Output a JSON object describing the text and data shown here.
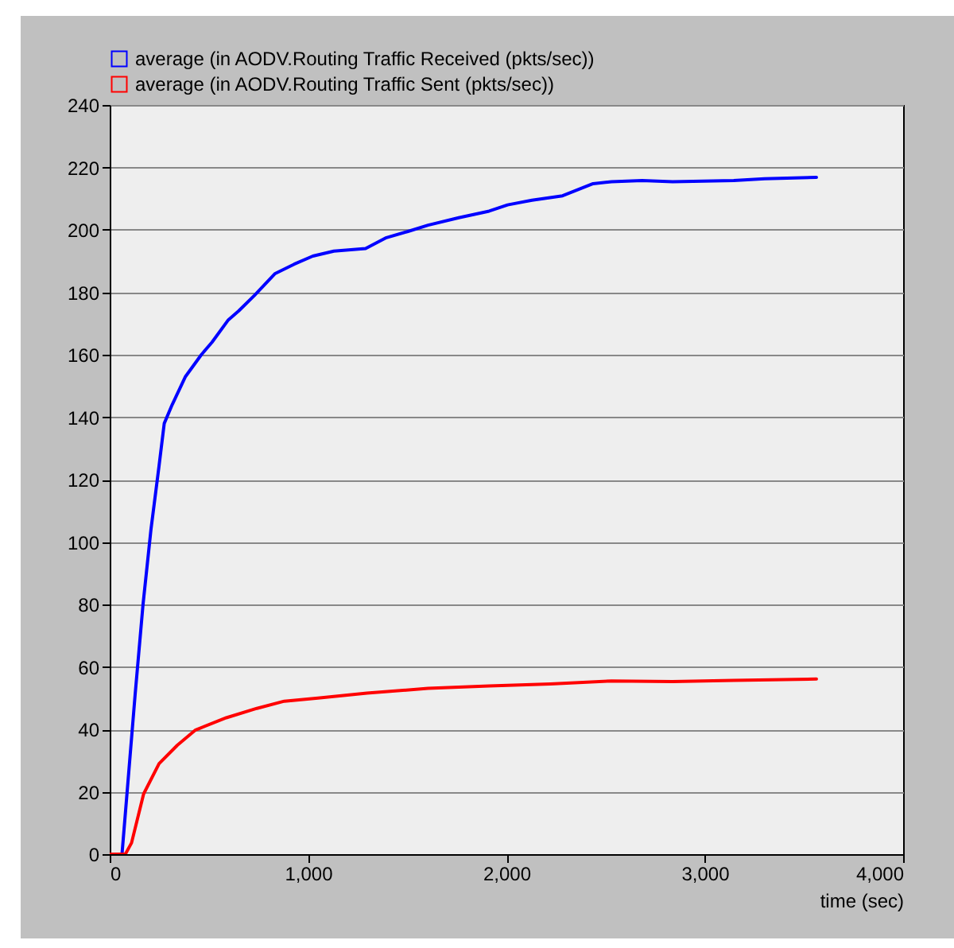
{
  "chart_data": {
    "type": "line",
    "xlabel": "time (sec)",
    "xlim": [
      0,
      4000
    ],
    "xticks": [
      0,
      {
        "value": 1000,
        "label": "1,000"
      },
      {
        "value": 2000,
        "label": "2,000"
      },
      {
        "value": 3000,
        "label": "3,000"
      },
      {
        "value": 4000,
        "label": "4,000"
      }
    ],
    "ylim": [
      0,
      240
    ],
    "yticks": [
      0,
      20,
      40,
      60,
      80,
      100,
      120,
      140,
      160,
      180,
      200,
      220,
      240
    ],
    "grid": "y",
    "legend": "top",
    "line_style": "solid",
    "marker": "none",
    "series": [
      {
        "name": "average (in AODV.Routing Traffic Received (pkts/sec))",
        "color": "#0000ff",
        "x": [
          0,
          62,
          128,
          168,
          208,
          248,
          275,
          315,
          382,
          462,
          516,
          596,
          650,
          730,
          834,
          930,
          1024,
          1130,
          1290,
          1395,
          1504,
          1605,
          1760,
          1913,
          2006,
          2129,
          2283,
          2437,
          2530,
          2684,
          2838,
          3146,
          3301,
          3563
        ],
        "values": [
          0,
          0,
          51,
          80,
          104,
          124,
          138,
          144,
          153,
          160,
          164,
          171,
          174,
          179,
          186,
          189,
          191.6,
          193.2,
          194,
          197.5,
          199.5,
          201.5,
          203.9,
          206,
          208,
          209.5,
          210.9,
          214.8,
          215.4,
          215.8,
          215.4,
          215.8,
          216.4,
          216.8
        ]
      },
      {
        "name": "average (in AODV.Routing Traffic Sent (pkts/sec))",
        "color": "#ff0000",
        "x": [
          0,
          79,
          110,
          171,
          249,
          341,
          433,
          588,
          742,
          880,
          1050,
          1297,
          1605,
          1913,
          2222,
          2530,
          2838,
          3146,
          3563
        ],
        "values": [
          0,
          0,
          3.6,
          19.3,
          29,
          34.9,
          39.8,
          43.7,
          46.7,
          49,
          50,
          51.6,
          53.1,
          53.9,
          54.5,
          55.5,
          55.3,
          55.7,
          56.1
        ]
      }
    ]
  }
}
